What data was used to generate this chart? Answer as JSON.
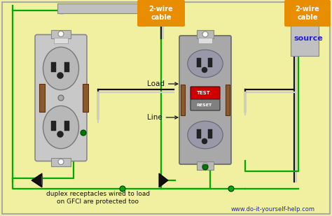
{
  "bg_color": "#f0f0a0",
  "border_color": "#aaaaaa",
  "subtitle_text": "duplex receptacles wired to load\non GFCI are protected too",
  "website": "www.do-it-yourself-help.com",
  "label_load": "Load",
  "label_line": "Line",
  "label_source": "source",
  "label_cable1": "2-wire\ncable",
  "label_cable2": "2-wire\ncable",
  "orange_box_color": "#e88c00",
  "source_text_color": "#2222cc",
  "wire_black": "#111111",
  "wire_white": "#cccccc",
  "wire_green": "#00aa00",
  "wire_gray": "#aaaaaa",
  "outlet_fill": "#b0b0b0",
  "outlet_border": "#666666",
  "gfci_fill": "#a0a0a0",
  "test_color": "#cc0000",
  "reset_color": "#666666",
  "plug_fill": "#111111",
  "screw_brown": "#8B5a2b",
  "screw_silver": "#b0b0b0",
  "screw_green": "#007700"
}
